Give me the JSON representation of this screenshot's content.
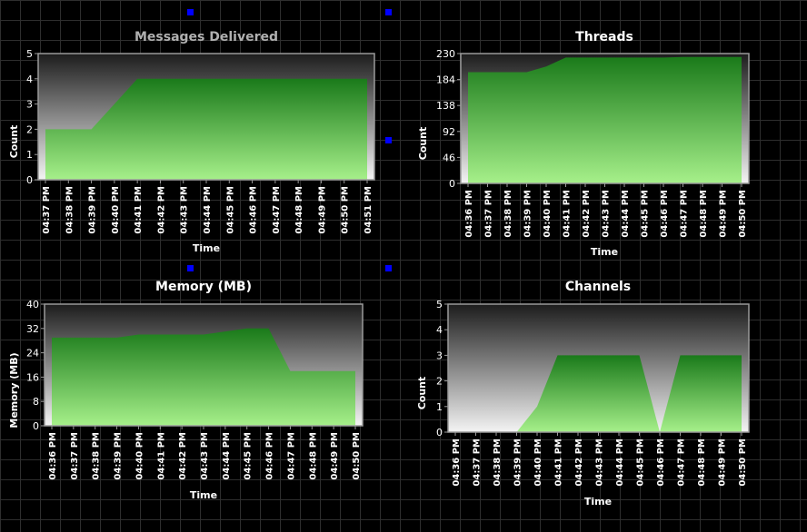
{
  "accent_colors": {
    "background": "#000000",
    "grid": "#2e2e2e",
    "area_dark": "#1a7a1a",
    "area_light": "#a6f08a",
    "plot_top": "#1c1c1c",
    "plot_bottom": "#f4f4f4",
    "title_muted": "#b0b0b0",
    "handle": "#0000ff"
  },
  "chart_data": [
    {
      "type": "area",
      "title": "Messages Delivered",
      "xlabel": "Time",
      "ylabel": "Count",
      "ylim": [
        0,
        5
      ],
      "yticks": [
        "0",
        "1",
        "2",
        "3",
        "4",
        "5"
      ],
      "x": [
        "04:37 PM",
        "04:38 PM",
        "04:39 PM",
        "04:40 PM",
        "04:41 PM",
        "04:42 PM",
        "04:43 PM",
        "04:44 PM",
        "04:45 PM",
        "04:46 PM",
        "04:47 PM",
        "04:48 PM",
        "04:49 PM",
        "04:50 PM",
        "04:51 PM"
      ],
      "values": [
        2,
        2,
        2,
        3,
        4,
        4,
        4,
        4,
        4,
        4,
        4,
        4,
        4,
        4,
        4
      ],
      "grid": false,
      "legend": "none"
    },
    {
      "type": "area",
      "title": "Threads",
      "xlabel": "Time",
      "ylabel": "Count",
      "ylim": [
        0,
        230
      ],
      "yticks": [
        "0",
        "46",
        "92",
        "138",
        "184",
        "230"
      ],
      "x": [
        "04:36 PM",
        "04:37 PM",
        "04:38 PM",
        "04:39 PM",
        "04:40 PM",
        "04:41 PM",
        "04:42 PM",
        "04:43 PM",
        "04:44 PM",
        "04:45 PM",
        "04:46 PM",
        "04:47 PM",
        "04:48 PM",
        "04:49 PM",
        "04:50 PM"
      ],
      "values": [
        197,
        197,
        197,
        197,
        207,
        223,
        223,
        223,
        223,
        223,
        223,
        224,
        224,
        224,
        224
      ],
      "grid": false,
      "legend": "none"
    },
    {
      "type": "area",
      "title": "Memory (MB)",
      "xlabel": "Time",
      "ylabel": "Memory (MB)",
      "ylim": [
        0,
        40
      ],
      "yticks": [
        "0",
        "8",
        "16",
        "24",
        "32",
        "40"
      ],
      "x": [
        "04:36 PM",
        "04:37 PM",
        "04:38 PM",
        "04:39 PM",
        "04:40 PM",
        "04:41 PM",
        "04:42 PM",
        "04:43 PM",
        "04:44 PM",
        "04:45 PM",
        "04:46 PM",
        "04:47 PM",
        "04:48 PM",
        "04:49 PM",
        "04:50 PM"
      ],
      "values": [
        29,
        29,
        29,
        29,
        30,
        30,
        30,
        30,
        31,
        32,
        32,
        18,
        18,
        18,
        18
      ],
      "grid": false,
      "legend": "none"
    },
    {
      "type": "area",
      "title": "Channels",
      "xlabel": "Time",
      "ylabel": "Count",
      "ylim": [
        0,
        5
      ],
      "yticks": [
        "0",
        "1",
        "2",
        "3",
        "4",
        "5"
      ],
      "x": [
        "04:36 PM",
        "04:37 PM",
        "04:38 PM",
        "04:39 PM",
        "04:40 PM",
        "04:41 PM",
        "04:42 PM",
        "04:43 PM",
        "04:44 PM",
        "04:45 PM",
        "04:46 PM",
        "04:47 PM",
        "04:48 PM",
        "04:49 PM",
        "04:50 PM"
      ],
      "values": [
        0,
        0,
        0,
        0,
        1,
        3,
        3,
        3,
        3,
        3,
        0,
        3,
        3,
        3,
        3
      ],
      "grid": false,
      "legend": "none"
    }
  ]
}
